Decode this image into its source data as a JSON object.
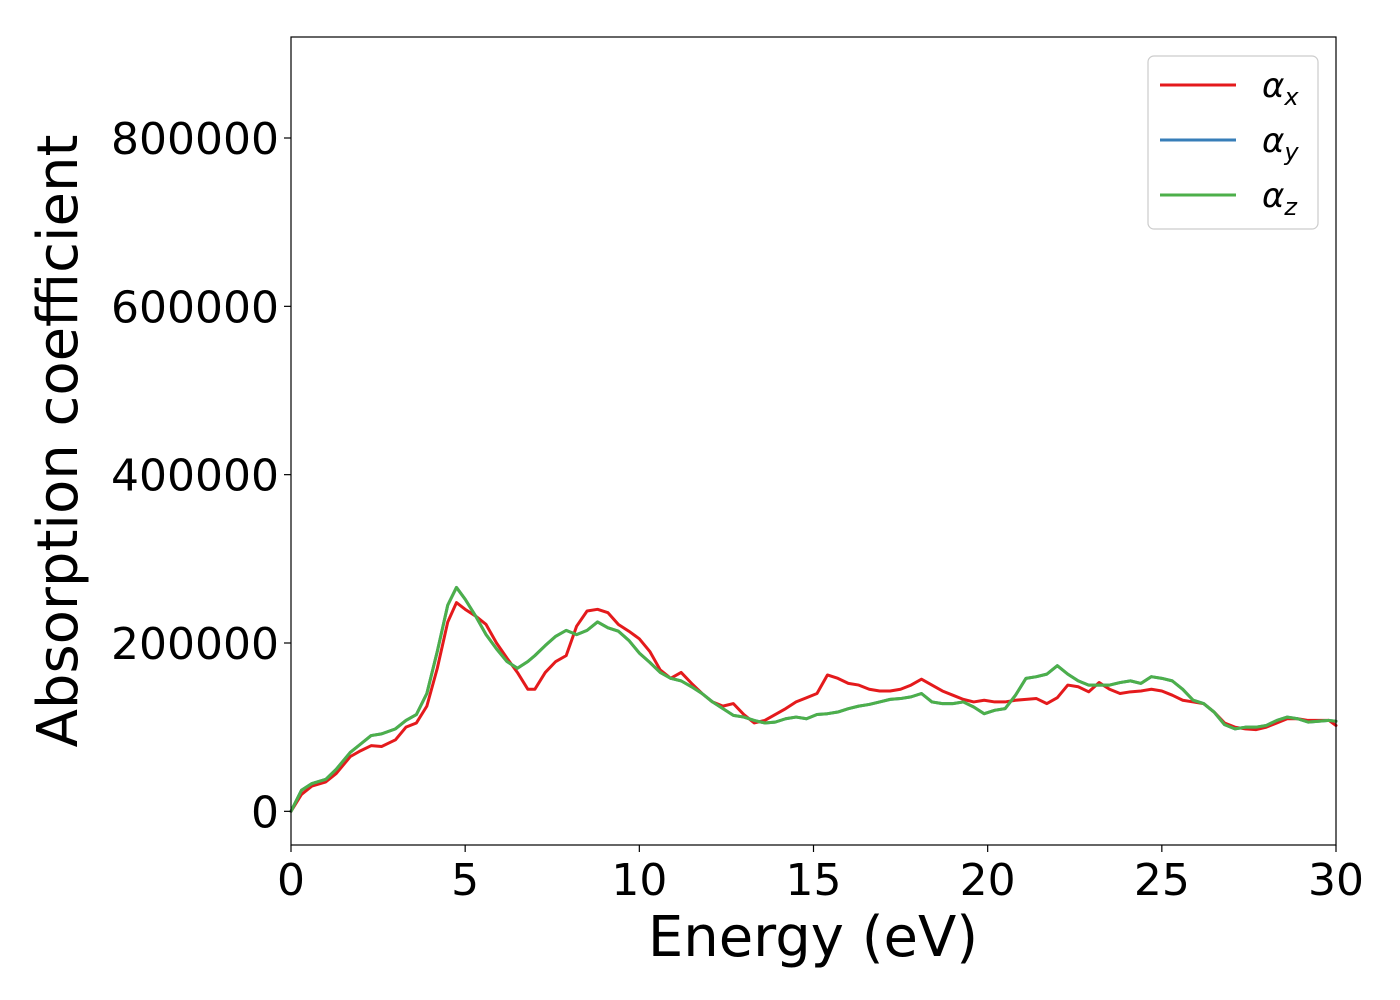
{
  "chart_data": {
    "type": "line",
    "xlabel": "Energy (eV)",
    "ylabel": "Absorption coefficient",
    "xlim": [
      0,
      30
    ],
    "ylim": [
      -40000,
      920000
    ],
    "xticks": [
      0,
      5,
      10,
      15,
      20,
      25,
      30
    ],
    "yticks": [
      0,
      200000,
      400000,
      600000,
      800000
    ],
    "grid": false,
    "legend_position": "top-right",
    "series": [
      {
        "name": "αx",
        "legend_base": "α",
        "legend_sub": "x",
        "color": "#e41a1c",
        "x": [
          0,
          0.3,
          0.6,
          1.0,
          1.3,
          1.7,
          2.0,
          2.3,
          2.6,
          3.0,
          3.3,
          3.6,
          3.9,
          4.2,
          4.5,
          4.75,
          5.0,
          5.3,
          5.6,
          5.9,
          6.2,
          6.5,
          6.8,
          7.0,
          7.3,
          7.6,
          7.9,
          8.2,
          8.5,
          8.8,
          9.1,
          9.4,
          9.7,
          10.0,
          10.3,
          10.6,
          10.9,
          11.2,
          11.5,
          11.8,
          12.1,
          12.4,
          12.7,
          13.0,
          13.3,
          13.6,
          13.9,
          14.2,
          14.5,
          14.8,
          15.1,
          15.4,
          15.7,
          16.0,
          16.3,
          16.6,
          16.9,
          17.2,
          17.5,
          17.8,
          18.1,
          18.4,
          18.7,
          19.0,
          19.3,
          19.6,
          19.9,
          20.2,
          20.5,
          20.8,
          21.1,
          21.4,
          21.7,
          22.0,
          22.3,
          22.6,
          22.9,
          23.2,
          23.5,
          23.8,
          24.1,
          24.4,
          24.7,
          25.0,
          25.3,
          25.6,
          25.9,
          26.2,
          26.5,
          26.8,
          27.1,
          27.4,
          27.7,
          28.0,
          28.3,
          28.6,
          28.9,
          29.2,
          29.5,
          29.8,
          30.0
        ],
        "y": [
          0,
          20000,
          30000,
          35000,
          45000,
          65000,
          72000,
          78000,
          77000,
          85000,
          100000,
          105000,
          125000,
          170000,
          225000,
          248000,
          240000,
          232000,
          222000,
          200000,
          182000,
          165000,
          145000,
          145000,
          165000,
          178000,
          185000,
          220000,
          238000,
          240000,
          236000,
          222000,
          214000,
          205000,
          190000,
          168000,
          158000,
          165000,
          152000,
          140000,
          130000,
          125000,
          128000,
          115000,
          105000,
          108000,
          115000,
          122000,
          130000,
          135000,
          140000,
          162000,
          158000,
          152000,
          150000,
          145000,
          143000,
          143000,
          145000,
          150000,
          157000,
          150000,
          143000,
          138000,
          133000,
          130000,
          132000,
          130000,
          130000,
          132000,
          133000,
          134000,
          128000,
          135000,
          150000,
          148000,
          142000,
          153000,
          145000,
          140000,
          142000,
          143000,
          145000,
          143000,
          138000,
          132000,
          130000,
          128000,
          118000,
          105000,
          100000,
          98000,
          97000,
          100000,
          105000,
          110000,
          110000,
          108000,
          108000,
          108000,
          102000
        ]
      },
      {
        "name": "αy",
        "legend_base": "α",
        "legend_sub": "y",
        "color": "#377eb8",
        "x": [
          0,
          0.3,
          0.6,
          1.0,
          1.3,
          1.7,
          2.0,
          2.3,
          2.6,
          3.0,
          3.3,
          3.6,
          3.9,
          4.2,
          4.5,
          4.75,
          5.0,
          5.3,
          5.6,
          5.9,
          6.2,
          6.5,
          6.8,
          7.0,
          7.3,
          7.6,
          7.9,
          8.2,
          8.5,
          8.8,
          9.1,
          9.4,
          9.7,
          10.0,
          10.3,
          10.6,
          10.9,
          11.2,
          11.5,
          11.8,
          12.1,
          12.4,
          12.7,
          13.0,
          13.3,
          13.6,
          13.9,
          14.2,
          14.5,
          14.8,
          15.1,
          15.4,
          15.7,
          16.0,
          16.3,
          16.6,
          16.9,
          17.2,
          17.5,
          17.8,
          18.1,
          18.4,
          18.7,
          19.0,
          19.3,
          19.6,
          19.9,
          20.2,
          20.5,
          20.8,
          21.1,
          21.4,
          21.7,
          22.0,
          22.3,
          22.6,
          22.9,
          23.2,
          23.5,
          23.8,
          24.1,
          24.4,
          24.7,
          25.0,
          25.3,
          25.6,
          25.9,
          26.2,
          26.5,
          26.8,
          27.1,
          27.4,
          27.7,
          28.0,
          28.3,
          28.6,
          28.9,
          29.2,
          29.5,
          29.8,
          30.0
        ],
        "y": [
          0,
          25000,
          33000,
          38000,
          50000,
          70000,
          80000,
          90000,
          92000,
          98000,
          108000,
          115000,
          140000,
          190000,
          245000,
          266000,
          252000,
          232000,
          210000,
          193000,
          178000,
          170000,
          178000,
          185000,
          197000,
          208000,
          215000,
          210000,
          215000,
          225000,
          218000,
          214000,
          203000,
          188000,
          177000,
          165000,
          158000,
          155000,
          148000,
          140000,
          130000,
          122000,
          114000,
          112000,
          108000,
          105000,
          106000,
          110000,
          112000,
          110000,
          115000,
          116000,
          118000,
          122000,
          125000,
          127000,
          130000,
          133000,
          134000,
          136000,
          140000,
          130000,
          128000,
          128000,
          130000,
          124000,
          116000,
          120000,
          122000,
          138000,
          158000,
          160000,
          163000,
          173000,
          163000,
          155000,
          150000,
          150000,
          150000,
          153000,
          155000,
          152000,
          160000,
          158000,
          155000,
          145000,
          132000,
          128000,
          118000,
          103000,
          98000,
          100000,
          100000,
          102000,
          108000,
          112000,
          110000,
          106000,
          107000,
          108000,
          107000
        ]
      },
      {
        "name": "αz",
        "legend_base": "α",
        "legend_sub": "z",
        "color": "#4daf4a",
        "x": [
          0,
          0.3,
          0.6,
          1.0,
          1.3,
          1.7,
          2.0,
          2.3,
          2.6,
          3.0,
          3.3,
          3.6,
          3.9,
          4.2,
          4.5,
          4.75,
          5.0,
          5.3,
          5.6,
          5.9,
          6.2,
          6.5,
          6.8,
          7.0,
          7.3,
          7.6,
          7.9,
          8.2,
          8.5,
          8.8,
          9.1,
          9.4,
          9.7,
          10.0,
          10.3,
          10.6,
          10.9,
          11.2,
          11.5,
          11.8,
          12.1,
          12.4,
          12.7,
          13.0,
          13.3,
          13.6,
          13.9,
          14.2,
          14.5,
          14.8,
          15.1,
          15.4,
          15.7,
          16.0,
          16.3,
          16.6,
          16.9,
          17.2,
          17.5,
          17.8,
          18.1,
          18.4,
          18.7,
          19.0,
          19.3,
          19.6,
          19.9,
          20.2,
          20.5,
          20.8,
          21.1,
          21.4,
          21.7,
          22.0,
          22.3,
          22.6,
          22.9,
          23.2,
          23.5,
          23.8,
          24.1,
          24.4,
          24.7,
          25.0,
          25.3,
          25.6,
          25.9,
          26.2,
          26.5,
          26.8,
          27.1,
          27.4,
          27.7,
          28.0,
          28.3,
          28.6,
          28.9,
          29.2,
          29.5,
          29.8,
          30.0
        ],
        "y": [
          0,
          25000,
          33000,
          38000,
          50000,
          70000,
          80000,
          90000,
          92000,
          98000,
          108000,
          115000,
          140000,
          190000,
          245000,
          266000,
          252000,
          232000,
          210000,
          193000,
          178000,
          170000,
          178000,
          185000,
          197000,
          208000,
          215000,
          210000,
          215000,
          225000,
          218000,
          214000,
          203000,
          188000,
          177000,
          165000,
          158000,
          155000,
          148000,
          140000,
          130000,
          122000,
          114000,
          112000,
          108000,
          105000,
          106000,
          110000,
          112000,
          110000,
          115000,
          116000,
          118000,
          122000,
          125000,
          127000,
          130000,
          133000,
          134000,
          136000,
          140000,
          130000,
          128000,
          128000,
          130000,
          124000,
          116000,
          120000,
          122000,
          138000,
          158000,
          160000,
          163000,
          173000,
          163000,
          155000,
          150000,
          150000,
          150000,
          153000,
          155000,
          152000,
          160000,
          158000,
          155000,
          145000,
          132000,
          128000,
          118000,
          103000,
          98000,
          100000,
          100000,
          102000,
          108000,
          112000,
          110000,
          106000,
          107000,
          108000,
          107000
        ]
      }
    ]
  }
}
